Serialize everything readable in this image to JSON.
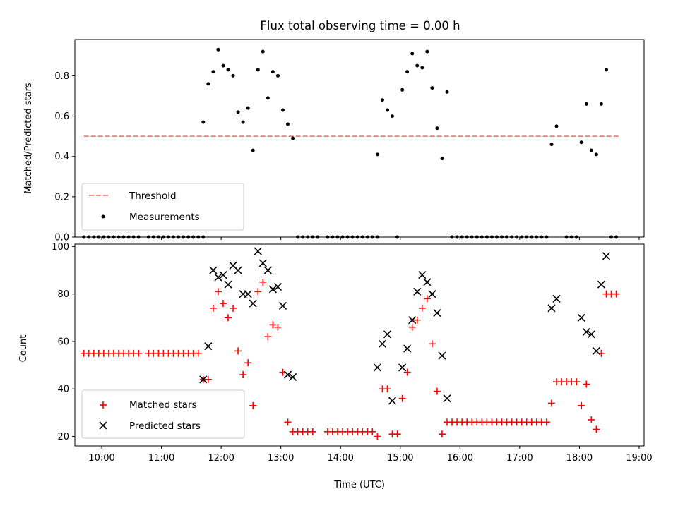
{
  "colors": {
    "threshold": "#f08080",
    "measurements": "#000000",
    "matched": "#ff0000",
    "predicted": "#000000"
  },
  "chart_data": [
    {
      "type": "scatter",
      "title": "Flux total observing time = 0.00 h",
      "ylabel": "Matched/Predicted stars",
      "xlim": [
        "09:33",
        "19:05"
      ],
      "ylim": [
        0,
        0.98
      ],
      "yticks": [
        0.0,
        0.2,
        0.4,
        0.6,
        0.8
      ],
      "ytick_labels": [
        "0.0",
        "0.2",
        "0.4",
        "0.6",
        "0.8"
      ],
      "legend_position": "lower-left",
      "grid": false,
      "threshold": {
        "name": "Threshold",
        "value": 0.5,
        "x_range": [
          "09:42",
          "18:40"
        ],
        "style": "dashed"
      },
      "series": [
        {
          "name": "Measurements",
          "marker": "dot",
          "points": [
            [
              "09:42",
              0
            ],
            [
              "09:47",
              0
            ],
            [
              "09:52",
              0
            ],
            [
              "09:57",
              0
            ],
            [
              "10:02",
              0
            ],
            [
              "10:07",
              0
            ],
            [
              "10:12",
              0
            ],
            [
              "10:17",
              0
            ],
            [
              "10:22",
              0
            ],
            [
              "10:27",
              0
            ],
            [
              "10:32",
              0
            ],
            [
              "10:37",
              0
            ],
            [
              "10:47",
              0
            ],
            [
              "10:52",
              0
            ],
            [
              "10:57",
              0
            ],
            [
              "11:02",
              0
            ],
            [
              "11:07",
              0
            ],
            [
              "11:12",
              0
            ],
            [
              "11:17",
              0
            ],
            [
              "11:22",
              0
            ],
            [
              "11:27",
              0
            ],
            [
              "11:32",
              0
            ],
            [
              "11:37",
              0
            ],
            [
              "11:42",
              0
            ],
            [
              "11:42",
              0.57
            ],
            [
              "11:47",
              0.76
            ],
            [
              "11:52",
              0.82
            ],
            [
              "11:57",
              0.93
            ],
            [
              "12:02",
              0.85
            ],
            [
              "12:07",
              0.83
            ],
            [
              "12:12",
              0.8
            ],
            [
              "12:17",
              0.62
            ],
            [
              "12:22",
              0.57
            ],
            [
              "12:27",
              0.64
            ],
            [
              "12:32",
              0.43
            ],
            [
              "12:37",
              0.83
            ],
            [
              "12:42",
              0.92
            ],
            [
              "12:47",
              0.69
            ],
            [
              "12:52",
              0.82
            ],
            [
              "12:57",
              0.8
            ],
            [
              "13:02",
              0.63
            ],
            [
              "13:07",
              0.56
            ],
            [
              "13:12",
              0.49
            ],
            [
              "13:17",
              0
            ],
            [
              "13:22",
              0
            ],
            [
              "13:27",
              0
            ],
            [
              "13:32",
              0
            ],
            [
              "13:37",
              0
            ],
            [
              "13:47",
              0
            ],
            [
              "13:52",
              0
            ],
            [
              "13:57",
              0
            ],
            [
              "14:02",
              0
            ],
            [
              "14:07",
              0
            ],
            [
              "14:12",
              0
            ],
            [
              "14:17",
              0
            ],
            [
              "14:22",
              0
            ],
            [
              "14:27",
              0
            ],
            [
              "14:32",
              0
            ],
            [
              "14:37",
              0
            ],
            [
              "14:37",
              0.41
            ],
            [
              "14:42",
              0.68
            ],
            [
              "14:47",
              0.63
            ],
            [
              "14:52",
              0.6
            ],
            [
              "14:57",
              0
            ],
            [
              "15:02",
              0.73
            ],
            [
              "15:07",
              0.82
            ],
            [
              "15:12",
              0.91
            ],
            [
              "15:17",
              0.85
            ],
            [
              "15:22",
              0.84
            ],
            [
              "15:27",
              0.92
            ],
            [
              "15:32",
              0.74
            ],
            [
              "15:37",
              0.54
            ],
            [
              "15:42",
              0.39
            ],
            [
              "15:47",
              0.72
            ],
            [
              "15:52",
              0
            ],
            [
              "15:57",
              0
            ],
            [
              "16:02",
              0
            ],
            [
              "16:07",
              0
            ],
            [
              "16:12",
              0
            ],
            [
              "16:17",
              0
            ],
            [
              "16:22",
              0
            ],
            [
              "16:27",
              0
            ],
            [
              "16:32",
              0
            ],
            [
              "16:37",
              0
            ],
            [
              "16:42",
              0
            ],
            [
              "16:47",
              0
            ],
            [
              "16:52",
              0
            ],
            [
              "16:57",
              0
            ],
            [
              "17:02",
              0
            ],
            [
              "17:07",
              0
            ],
            [
              "17:12",
              0
            ],
            [
              "17:17",
              0
            ],
            [
              "17:22",
              0
            ],
            [
              "17:27",
              0
            ],
            [
              "17:32",
              0.46
            ],
            [
              "17:37",
              0.55
            ],
            [
              "17:47",
              0
            ],
            [
              "17:52",
              0
            ],
            [
              "17:57",
              0
            ],
            [
              "18:02",
              0.47
            ],
            [
              "18:07",
              0.66
            ],
            [
              "18:12",
              0.43
            ],
            [
              "18:17",
              0.41
            ],
            [
              "18:22",
              0.66
            ],
            [
              "18:27",
              0.83
            ],
            [
              "18:32",
              0
            ],
            [
              "18:37",
              0
            ]
          ]
        }
      ]
    },
    {
      "type": "scatter",
      "xlabel": "Time (UTC)",
      "ylabel": "Count",
      "xlim": [
        "09:33",
        "19:05"
      ],
      "ylim": [
        16,
        101
      ],
      "xticks": [
        "10:00",
        "11:00",
        "12:00",
        "13:00",
        "14:00",
        "15:00",
        "16:00",
        "17:00",
        "18:00",
        "19:00"
      ],
      "yticks": [
        20,
        40,
        60,
        80,
        100
      ],
      "ytick_labels": [
        "20",
        "40",
        "60",
        "80",
        "100"
      ],
      "legend_position": "lower-left",
      "grid": false,
      "series": [
        {
          "name": "Matched stars",
          "marker": "plus",
          "points": [
            [
              "09:42",
              55
            ],
            [
              "09:47",
              55
            ],
            [
              "09:52",
              55
            ],
            [
              "09:57",
              55
            ],
            [
              "10:02",
              55
            ],
            [
              "10:07",
              55
            ],
            [
              "10:12",
              55
            ],
            [
              "10:17",
              55
            ],
            [
              "10:22",
              55
            ],
            [
              "10:27",
              55
            ],
            [
              "10:32",
              55
            ],
            [
              "10:37",
              55
            ],
            [
              "10:47",
              55
            ],
            [
              "10:52",
              55
            ],
            [
              "10:57",
              55
            ],
            [
              "11:02",
              55
            ],
            [
              "11:07",
              55
            ],
            [
              "11:12",
              55
            ],
            [
              "11:17",
              55
            ],
            [
              "11:22",
              55
            ],
            [
              "11:27",
              55
            ],
            [
              "11:32",
              55
            ],
            [
              "11:37",
              55
            ],
            [
              "11:42",
              44
            ],
            [
              "11:47",
              44
            ],
            [
              "11:52",
              74
            ],
            [
              "11:57",
              81
            ],
            [
              "12:02",
              76
            ],
            [
              "12:07",
              70
            ],
            [
              "12:12",
              74
            ],
            [
              "12:17",
              56
            ],
            [
              "12:22",
              46
            ],
            [
              "12:27",
              51
            ],
            [
              "12:32",
              33
            ],
            [
              "12:37",
              81
            ],
            [
              "12:42",
              85
            ],
            [
              "12:47",
              62
            ],
            [
              "12:52",
              67
            ],
            [
              "12:57",
              66
            ],
            [
              "13:02",
              47
            ],
            [
              "13:07",
              26
            ],
            [
              "13:12",
              22
            ],
            [
              "13:17",
              22
            ],
            [
              "13:22",
              22
            ],
            [
              "13:27",
              22
            ],
            [
              "13:32",
              22
            ],
            [
              "13:47",
              22
            ],
            [
              "13:52",
              22
            ],
            [
              "13:57",
              22
            ],
            [
              "14:02",
              22
            ],
            [
              "14:07",
              22
            ],
            [
              "14:12",
              22
            ],
            [
              "14:17",
              22
            ],
            [
              "14:22",
              22
            ],
            [
              "14:27",
              22
            ],
            [
              "14:32",
              22
            ],
            [
              "14:37",
              20
            ],
            [
              "14:42",
              40
            ],
            [
              "14:47",
              40
            ],
            [
              "14:52",
              21
            ],
            [
              "14:57",
              21
            ],
            [
              "15:02",
              36
            ],
            [
              "15:07",
              47
            ],
            [
              "15:12",
              66
            ],
            [
              "15:17",
              69
            ],
            [
              "15:22",
              74
            ],
            [
              "15:27",
              78
            ],
            [
              "15:32",
              59
            ],
            [
              "15:37",
              39
            ],
            [
              "15:42",
              21
            ],
            [
              "15:47",
              26
            ],
            [
              "15:52",
              26
            ],
            [
              "15:57",
              26
            ],
            [
              "16:02",
              26
            ],
            [
              "16:07",
              26
            ],
            [
              "16:12",
              26
            ],
            [
              "16:17",
              26
            ],
            [
              "16:22",
              26
            ],
            [
              "16:27",
              26
            ],
            [
              "16:32",
              26
            ],
            [
              "16:37",
              26
            ],
            [
              "16:42",
              26
            ],
            [
              "16:47",
              26
            ],
            [
              "16:52",
              26
            ],
            [
              "16:57",
              26
            ],
            [
              "17:02",
              26
            ],
            [
              "17:07",
              26
            ],
            [
              "17:12",
              26
            ],
            [
              "17:17",
              26
            ],
            [
              "17:22",
              26
            ],
            [
              "17:27",
              26
            ],
            [
              "17:32",
              34
            ],
            [
              "17:37",
              43
            ],
            [
              "17:42",
              43
            ],
            [
              "17:47",
              43
            ],
            [
              "17:52",
              43
            ],
            [
              "17:57",
              43
            ],
            [
              "18:02",
              33
            ],
            [
              "18:07",
              42
            ],
            [
              "18:12",
              27
            ],
            [
              "18:17",
              23
            ],
            [
              "18:22",
              55
            ],
            [
              "18:27",
              80
            ],
            [
              "18:32",
              80
            ],
            [
              "18:37",
              80
            ]
          ]
        },
        {
          "name": "Predicted stars",
          "marker": "x",
          "points": [
            [
              "11:42",
              44
            ],
            [
              "11:47",
              58
            ],
            [
              "11:52",
              90
            ],
            [
              "11:57",
              87
            ],
            [
              "12:02",
              88
            ],
            [
              "12:07",
              84
            ],
            [
              "12:12",
              92
            ],
            [
              "12:17",
              90
            ],
            [
              "12:22",
              80
            ],
            [
              "12:27",
              80
            ],
            [
              "12:32",
              76
            ],
            [
              "12:37",
              98
            ],
            [
              "12:42",
              93
            ],
            [
              "12:47",
              90
            ],
            [
              "12:52",
              82
            ],
            [
              "12:57",
              83
            ],
            [
              "13:02",
              75
            ],
            [
              "13:07",
              46
            ],
            [
              "13:12",
              45
            ],
            [
              "14:37",
              49
            ],
            [
              "14:42",
              59
            ],
            [
              "14:47",
              63
            ],
            [
              "14:52",
              35
            ],
            [
              "15:02",
              49
            ],
            [
              "15:07",
              57
            ],
            [
              "15:12",
              69
            ],
            [
              "15:17",
              81
            ],
            [
              "15:22",
              88
            ],
            [
              "15:27",
              85
            ],
            [
              "15:32",
              80
            ],
            [
              "15:37",
              72
            ],
            [
              "15:42",
              54
            ],
            [
              "15:47",
              36
            ],
            [
              "17:32",
              74
            ],
            [
              "17:37",
              78
            ],
            [
              "18:02",
              70
            ],
            [
              "18:07",
              64
            ],
            [
              "18:12",
              63
            ],
            [
              "18:17",
              56
            ],
            [
              "18:22",
              84
            ],
            [
              "18:27",
              96
            ]
          ]
        }
      ]
    }
  ]
}
